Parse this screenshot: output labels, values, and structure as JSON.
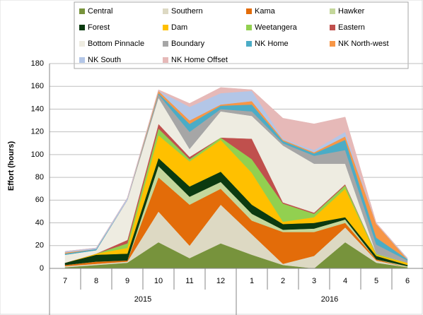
{
  "chart_data": {
    "type": "stacked_area",
    "y_label": "Effort  (hours)",
    "categories": [
      "7",
      "8",
      "9",
      "10",
      "11",
      "12",
      "1",
      "2",
      "3",
      "4",
      "5",
      "6"
    ],
    "x_groups": [
      {
        "label": "2015",
        "count": 6
      },
      {
        "label": "2016",
        "count": 6
      }
    ],
    "ylim": [
      0,
      180
    ],
    "yticks": [
      0,
      20,
      40,
      60,
      80,
      100,
      120,
      140,
      160,
      180
    ],
    "grid": true,
    "legend": "top",
    "series": [
      {
        "name": "Central",
        "color": "#77933c",
        "values": [
          1,
          3,
          5,
          23,
          9,
          22,
          12,
          3,
          0,
          23,
          5,
          1
        ]
      },
      {
        "name": "Southern",
        "color": "#ddd9c3",
        "values": [
          1,
          1,
          1,
          27,
          11,
          34,
          18,
          1,
          11,
          13,
          2,
          0
        ]
      },
      {
        "name": "Kama",
        "color": "#e36c09",
        "values": [
          1,
          2,
          1,
          30,
          36,
          14,
          12,
          28,
          21,
          4,
          1,
          0
        ]
      },
      {
        "name": "Hawker",
        "color": "#c4d79b",
        "values": [
          0,
          0,
          0,
          10,
          7,
          6,
          6,
          2,
          3,
          3,
          0,
          1
        ]
      },
      {
        "name": "Forest",
        "color": "#0b3a10",
        "values": [
          2,
          6,
          6,
          7,
          9,
          9,
          8,
          5,
          5,
          2,
          3,
          1
        ]
      },
      {
        "name": "Dam",
        "color": "#ffc000",
        "values": [
          0,
          1,
          5,
          20,
          22,
          28,
          28,
          2,
          5,
          25,
          1,
          2
        ]
      },
      {
        "name": "Weetangera",
        "color": "#92d050",
        "values": [
          0,
          0,
          4,
          6,
          2,
          2,
          12,
          16,
          3,
          3,
          1,
          0
        ]
      },
      {
        "name": "Eastern",
        "color": "#c0504d",
        "values": [
          0,
          0,
          3,
          4,
          2,
          0,
          18,
          1,
          1,
          1,
          0,
          0
        ]
      },
      {
        "name": "Bottom Pinnacle",
        "color": "#eeece1",
        "values": [
          7,
          3,
          35,
          23,
          7,
          23,
          20,
          50,
          43,
          18,
          0,
          0
        ]
      },
      {
        "name": "Boundary",
        "color": "#a6a6a6",
        "values": [
          0,
          0,
          0,
          3,
          15,
          2,
          4,
          2,
          7,
          12,
          8,
          2
        ]
      },
      {
        "name": "NK Home",
        "color": "#4bacc6",
        "values": [
          1,
          1,
          0,
          1,
          7,
          3,
          6,
          2,
          2,
          9,
          6,
          1
        ]
      },
      {
        "name": "NK North-west",
        "color": "#f79646",
        "values": [
          1,
          0,
          0,
          2,
          3,
          1,
          3,
          1,
          1,
          3,
          12,
          0
        ]
      },
      {
        "name": "NK South",
        "color": "#b3c6e7",
        "values": [
          1,
          1,
          2,
          0,
          12,
          10,
          9,
          1,
          2,
          4,
          0,
          1
        ]
      },
      {
        "name": "NK Home Offset",
        "color": "#e6b9b8",
        "values": [
          0,
          0,
          0,
          1,
          3,
          5,
          1,
          18,
          23,
          13,
          1,
          0
        ]
      }
    ]
  }
}
